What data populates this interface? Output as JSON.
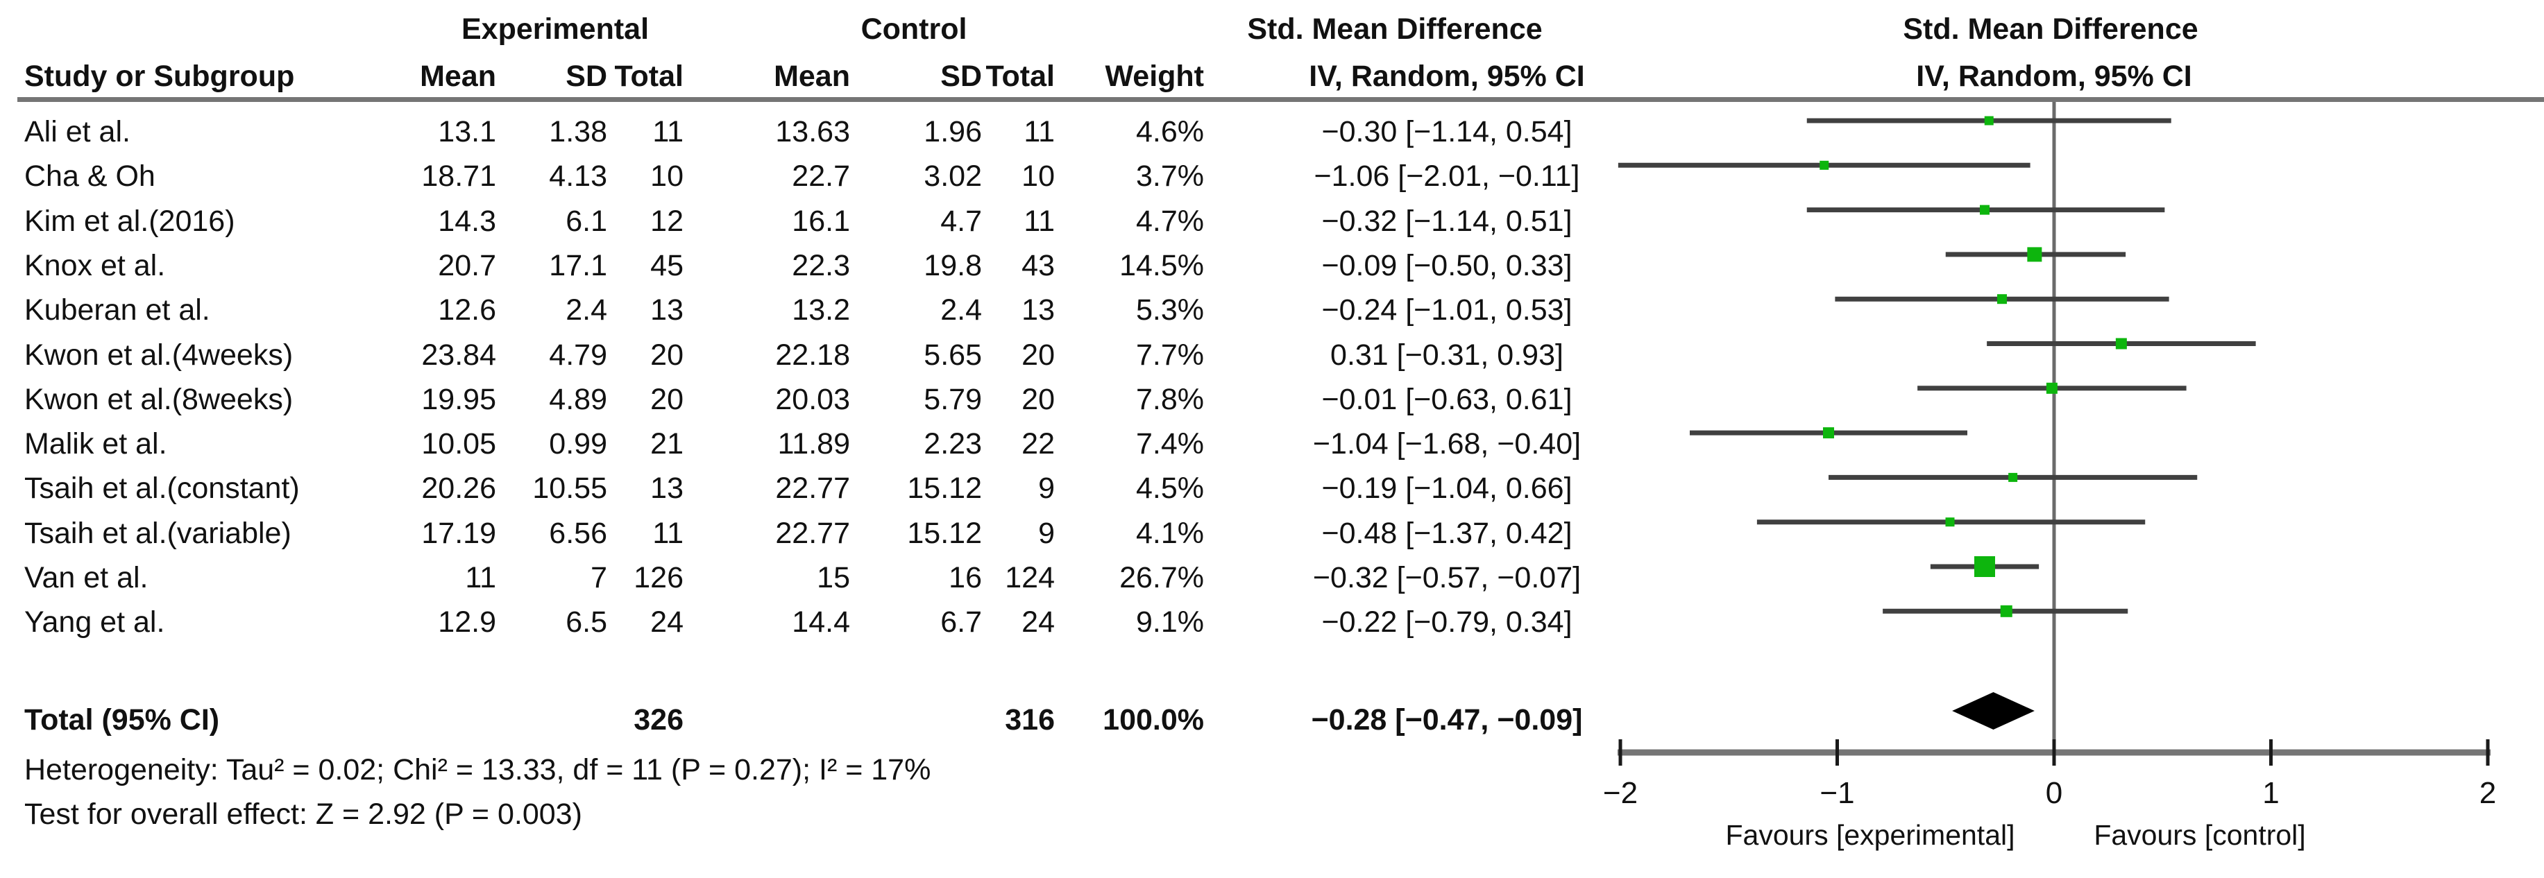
{
  "header": {
    "group_experimental": "Experimental",
    "group_control": "Control",
    "smd_column_title": "Std. Mean Difference",
    "smd_plot_title": "Std. Mean Difference",
    "col_study": "Study or Subgroup",
    "col_mean_exp": "Mean",
    "col_sd_exp": "SD",
    "col_total_exp": "Total",
    "col_mean_ctl": "Mean",
    "col_sd_ctl": "SD",
    "col_total_ctl": "Total",
    "col_weight": "Weight",
    "method_column": "IV, Random, 95% CI",
    "method_plot": "IV, Random, 95% CI"
  },
  "chart_data": {
    "type": "forest",
    "effect_measure": "Std. Mean Difference",
    "method": "IV, Random, 95% CI",
    "xlim": [
      -2,
      2
    ],
    "tick_values": [
      -2,
      -1,
      0,
      1,
      2
    ],
    "tick_labels": [
      "−2",
      "−1",
      "0",
      "1",
      "2"
    ],
    "favours_left": "Favours [experimental]",
    "favours_right": "Favours [control]",
    "colors": {
      "square": "#0DB50D",
      "diamond": "#000000",
      "ci_line": "#404040",
      "axis": "#757575",
      "zero_line": "#6b6b6b",
      "tick": "#1a1a1a"
    },
    "studies": [
      {
        "name": "Ali et al.",
        "exp": {
          "mean": "13.1",
          "sd": "1.38",
          "total": "11"
        },
        "ctl": {
          "mean": "13.63",
          "sd": "1.96",
          "total": "11"
        },
        "weight": "4.6%",
        "weight_value": 4.6,
        "est": -0.3,
        "lo": -1.14,
        "hi": 0.54,
        "ci_text": "−0.30 [−1.14, 0.54]"
      },
      {
        "name": "Cha & Oh",
        "exp": {
          "mean": "18.71",
          "sd": "4.13",
          "total": "10"
        },
        "ctl": {
          "mean": "22.7",
          "sd": "3.02",
          "total": "10"
        },
        "weight": "3.7%",
        "weight_value": 3.7,
        "est": -1.06,
        "lo": -2.01,
        "hi": -0.11,
        "ci_text": "−1.06 [−2.01, −0.11]"
      },
      {
        "name": "Kim et al.(2016)",
        "exp": {
          "mean": "14.3",
          "sd": "6.1",
          "total": "12"
        },
        "ctl": {
          "mean": "16.1",
          "sd": "4.7",
          "total": "11"
        },
        "weight": "4.7%",
        "weight_value": 4.7,
        "est": -0.32,
        "lo": -1.14,
        "hi": 0.51,
        "ci_text": "−0.32 [−1.14, 0.51]"
      },
      {
        "name": "Knox et al.",
        "exp": {
          "mean": "20.7",
          "sd": "17.1",
          "total": "45"
        },
        "ctl": {
          "mean": "22.3",
          "sd": "19.8",
          "total": "43"
        },
        "weight": "14.5%",
        "weight_value": 14.5,
        "est": -0.09,
        "lo": -0.5,
        "hi": 0.33,
        "ci_text": "−0.09 [−0.50, 0.33]"
      },
      {
        "name": "Kuberan et al.",
        "exp": {
          "mean": "12.6",
          "sd": "2.4",
          "total": "13"
        },
        "ctl": {
          "mean": "13.2",
          "sd": "2.4",
          "total": "13"
        },
        "weight": "5.3%",
        "weight_value": 5.3,
        "est": -0.24,
        "lo": -1.01,
        "hi": 0.53,
        "ci_text": "−0.24 [−1.01, 0.53]"
      },
      {
        "name": "Kwon et al.(4weeks)",
        "exp": {
          "mean": "23.84",
          "sd": "4.79",
          "total": "20"
        },
        "ctl": {
          "mean": "22.18",
          "sd": "5.65",
          "total": "20"
        },
        "weight": "7.7%",
        "weight_value": 7.7,
        "est": 0.31,
        "lo": -0.31,
        "hi": 0.93,
        "ci_text": "0.31 [−0.31, 0.93]"
      },
      {
        "name": "Kwon et al.(8weeks)",
        "exp": {
          "mean": "19.95",
          "sd": "4.89",
          "total": "20"
        },
        "ctl": {
          "mean": "20.03",
          "sd": "5.79",
          "total": "20"
        },
        "weight": "7.8%",
        "weight_value": 7.8,
        "est": -0.01,
        "lo": -0.63,
        "hi": 0.61,
        "ci_text": "−0.01 [−0.63, 0.61]"
      },
      {
        "name": "Malik et al.",
        "exp": {
          "mean": "10.05",
          "sd": "0.99",
          "total": "21"
        },
        "ctl": {
          "mean": "11.89",
          "sd": "2.23",
          "total": "22"
        },
        "weight": "7.4%",
        "weight_value": 7.4,
        "est": -1.04,
        "lo": -1.68,
        "hi": -0.4,
        "ci_text": "−1.04 [−1.68, −0.40]"
      },
      {
        "name": "Tsaih et al.(constant)",
        "exp": {
          "mean": "20.26",
          "sd": "10.55",
          "total": "13"
        },
        "ctl": {
          "mean": "22.77",
          "sd": "15.12",
          "total": "9"
        },
        "weight": "4.5%",
        "weight_value": 4.5,
        "est": -0.19,
        "lo": -1.04,
        "hi": 0.66,
        "ci_text": "−0.19 [−1.04, 0.66]"
      },
      {
        "name": "Tsaih et al.(variable)",
        "exp": {
          "mean": "17.19",
          "sd": "6.56",
          "total": "11"
        },
        "ctl": {
          "mean": "22.77",
          "sd": "15.12",
          "total": "9"
        },
        "weight": "4.1%",
        "weight_value": 4.1,
        "est": -0.48,
        "lo": -1.37,
        "hi": 0.42,
        "ci_text": "−0.48 [−1.37, 0.42]"
      },
      {
        "name": "Van et al.",
        "exp": {
          "mean": "11",
          "sd": "7",
          "total": "126"
        },
        "ctl": {
          "mean": "15",
          "sd": "16",
          "total": "124"
        },
        "weight": "26.7%",
        "weight_value": 26.7,
        "est": -0.32,
        "lo": -0.57,
        "hi": -0.07,
        "ci_text": "−0.32 [−0.57, −0.07]"
      },
      {
        "name": "Yang et al.",
        "exp": {
          "mean": "12.9",
          "sd": "6.5",
          "total": "24"
        },
        "ctl": {
          "mean": "14.4",
          "sd": "6.7",
          "total": "24"
        },
        "weight": "9.1%",
        "weight_value": 9.1,
        "est": -0.22,
        "lo": -0.79,
        "hi": 0.34,
        "ci_text": "−0.22 [−0.79, 0.34]"
      }
    ],
    "total": {
      "label": "Total (95% CI)",
      "exp_total": "326",
      "ctl_total": "316",
      "weight": "100.0%",
      "est": -0.28,
      "lo": -0.47,
      "hi": -0.09,
      "ci_text": "−0.28 [−0.47, −0.09]"
    },
    "footnotes": {
      "heterogeneity": "Heterogeneity: Tau² = 0.02; Chi² = 13.33, df = 11 (P = 0.27); I² = 17%",
      "overall_effect": "Test for overall effect: Z = 2.92 (P = 0.003)"
    }
  }
}
